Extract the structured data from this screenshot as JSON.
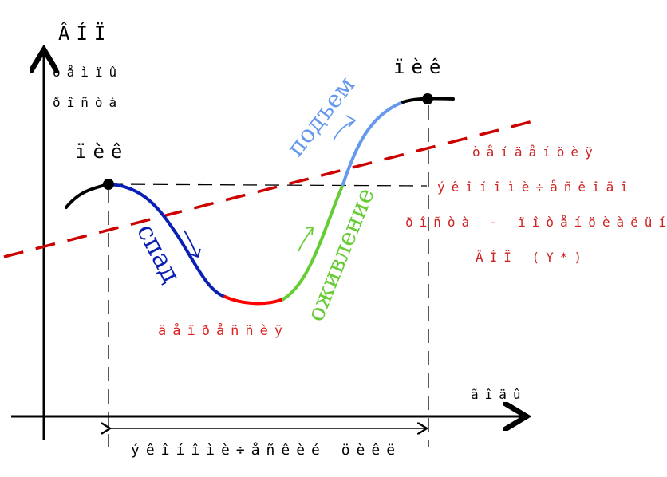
{
  "axes": {
    "y_label_line1": "ÂÍÏ",
    "y_label_line2": "òåìïû",
    "y_label_line3": "ðîñòà",
    "x_label": "ãîäû"
  },
  "curve_labels": {
    "peak_left": "ïèê",
    "peak_right": "ïèê",
    "decline": "спад",
    "depression": "äåïðåññèÿ",
    "revival": "оживление",
    "rise": "подъем"
  },
  "trend_note": {
    "line1": "òåíäåíöèÿ",
    "line2": "ýêîíîìè÷åñêîãî",
    "line3": "ðîñòà - ïîòåíöèàëüíûé",
    "line4": "ÂÍÏ (Y*)"
  },
  "cycle_label": "ýêîíîìè÷åñêèé öèêë",
  "colors": {
    "axis": "#000000",
    "peak_segment": "#000000",
    "decline": "#0a1fb4",
    "depression": "#ff0000",
    "revival": "#66cc33",
    "rise": "#6699ee",
    "trend": "#cc0000",
    "trend_text": "#cc2222",
    "dashed_guides": "#000000"
  }
}
